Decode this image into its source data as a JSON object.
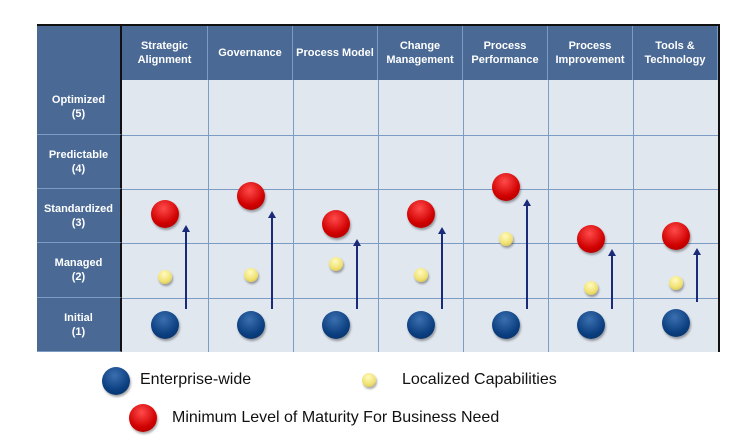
{
  "columns": [
    "Strategic Alignment",
    "Governance",
    "Process Model",
    "Change Management",
    "Process Performance",
    "Process Improvement",
    "Tools & Technology"
  ],
  "rows": [
    {
      "label": "Optimized",
      "level": "(5)"
    },
    {
      "label": "Predictable",
      "level": "(4)"
    },
    {
      "label": "Standardized",
      "level": "(3)"
    },
    {
      "label": "Managed",
      "level": "(2)"
    },
    {
      "label": "Initial",
      "level": "(1)"
    }
  ],
  "markers": {
    "enterprise_wide": [
      1,
      1,
      1,
      1,
      1,
      1,
      1.04
    ],
    "localized": [
      1.88,
      1.92,
      2.12,
      1.92,
      2.58,
      1.68,
      1.77
    ],
    "minimum_need": [
      3.04,
      3.37,
      2.85,
      3.04,
      3.53,
      2.58,
      2.63
    ],
    "arrow_to": [
      2.72,
      2.99,
      2.47,
      2.69,
      3.2,
      2.28,
      2.31
    ]
  },
  "colors": {
    "enterprise_wide": "#0b3f80",
    "localized": "#f0e070",
    "minimum_need": "#d00000",
    "header": "#4a6a95",
    "cell": "#e1e7ef"
  },
  "legend": {
    "enterprise": "Enterprise-wide",
    "localized": "Localized Capabilities",
    "minimum": "Minimum Level of Maturity For Business Need"
  }
}
